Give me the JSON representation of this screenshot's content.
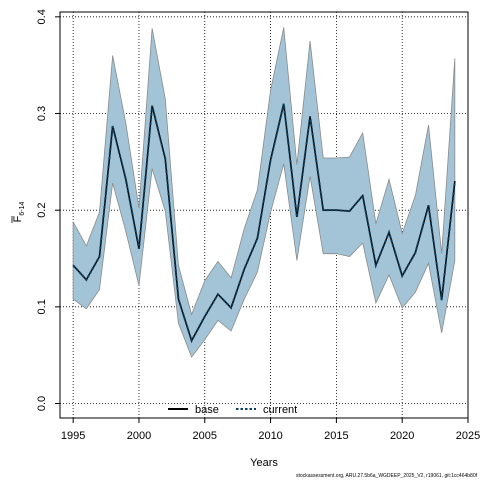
{
  "chart_data": {
    "type": "area",
    "xlabel": "Years",
    "ylabel": "F",
    "ylabel_sub": "6-14",
    "xlim": [
      1994,
      2025
    ],
    "ylim": [
      -0.015,
      0.405
    ],
    "x_ticks": [
      1995,
      2000,
      2005,
      2010,
      2015,
      2020,
      2025
    ],
    "y_ticks": [
      0.0,
      0.1,
      0.2,
      0.3,
      0.4
    ],
    "y_tick_labels": [
      "0.0",
      "0.1",
      "0.2",
      "0.3",
      "0.4"
    ],
    "grid": true,
    "legend_position": "bottom-center",
    "colors": {
      "band_fill": "#a3c4d6",
      "band_stroke": "#8a8a8a",
      "current_line": "#0b3d5c",
      "base_line": "#000000",
      "grid": "#000000"
    },
    "x": [
      1995,
      1996,
      1997,
      1998,
      1999,
      2000,
      2001,
      2002,
      2003,
      2004,
      2005,
      2006,
      2007,
      2008,
      2009,
      2010,
      2011,
      2012,
      2013,
      2014,
      2015,
      2016,
      2017,
      2018,
      2019,
      2020,
      2021,
      2022,
      2023,
      2024
    ],
    "series": [
      {
        "name": "base",
        "values": [
          0.143,
          0.128,
          0.152,
          0.287,
          0.232,
          0.16,
          0.308,
          0.253,
          0.108,
          0.065,
          0.09,
          0.113,
          0.099,
          0.139,
          0.171,
          0.252,
          0.31,
          0.193,
          0.297,
          0.2,
          0.2,
          0.199,
          0.215,
          0.143,
          0.177,
          0.132,
          0.156,
          0.205,
          0.107,
          0.23
        ]
      },
      {
        "name": "current",
        "values": [
          0.143,
          0.128,
          0.152,
          0.287,
          0.232,
          0.16,
          0.308,
          0.253,
          0.108,
          0.065,
          0.09,
          0.113,
          0.099,
          0.139,
          0.171,
          0.252,
          0.31,
          0.193,
          0.297,
          0.2,
          0.2,
          0.199,
          0.215,
          0.143,
          0.177,
          0.132,
          0.156,
          0.205,
          0.107,
          0.23
        ]
      }
    ],
    "band": {
      "upper": [
        0.188,
        0.163,
        0.198,
        0.36,
        0.29,
        0.202,
        0.388,
        0.315,
        0.143,
        0.092,
        0.127,
        0.147,
        0.13,
        0.181,
        0.221,
        0.324,
        0.389,
        0.247,
        0.375,
        0.254,
        0.254,
        0.255,
        0.28,
        0.186,
        0.232,
        0.176,
        0.215,
        0.288,
        0.155,
        0.357
      ],
      "lower": [
        0.108,
        0.098,
        0.118,
        0.228,
        0.178,
        0.122,
        0.243,
        0.199,
        0.083,
        0.048,
        0.066,
        0.086,
        0.075,
        0.108,
        0.136,
        0.198,
        0.248,
        0.148,
        0.235,
        0.155,
        0.155,
        0.152,
        0.166,
        0.104,
        0.133,
        0.099,
        0.115,
        0.145,
        0.073,
        0.148
      ]
    },
    "legend": [
      "base",
      "current"
    ],
    "footer": "stockassessment.org, ARU.27.5b6a_WGDEEP_2025_V2, r19061, git:1cc464b80f"
  }
}
